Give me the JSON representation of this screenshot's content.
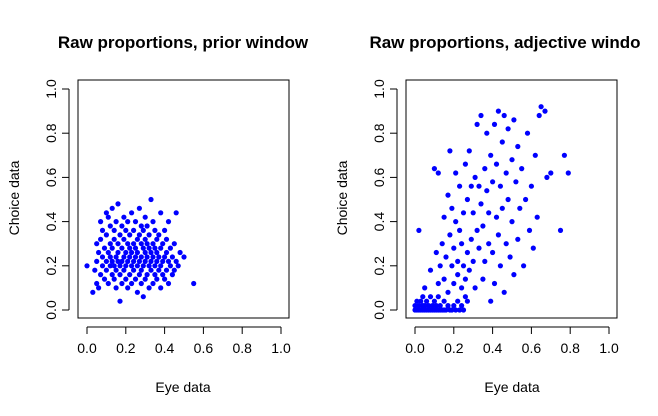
{
  "figure": {
    "panels": [
      {
        "title": "Raw proportions, prior window",
        "xlabel": "Eye data",
        "ylabel": "Choice data"
      },
      {
        "title": "Raw proportions, adjective windo",
        "xlabel": "Eye data",
        "ylabel": "Choice data"
      }
    ]
  },
  "chart_data": [
    {
      "type": "scatter",
      "title": "Raw proportions, prior window",
      "xlabel": "Eye data",
      "ylabel": "Choice data",
      "xlim": [
        0,
        1
      ],
      "ylim": [
        0,
        1
      ],
      "xticks": [
        "0.0",
        "0.2",
        "0.4",
        "0.6",
        "0.8",
        "1.0"
      ],
      "yticks": [
        "0.0",
        "0.2",
        "0.4",
        "0.6",
        "0.8",
        "1.0"
      ],
      "marker_color": "#0000ff",
      "points": [
        [
          0.0,
          0.2
        ],
        [
          0.03,
          0.08
        ],
        [
          0.04,
          0.18
        ],
        [
          0.05,
          0.12
        ],
        [
          0.05,
          0.22
        ],
        [
          0.05,
          0.3
        ],
        [
          0.06,
          0.1
        ],
        [
          0.06,
          0.26
        ],
        [
          0.07,
          0.16
        ],
        [
          0.07,
          0.32
        ],
        [
          0.07,
          0.4
        ],
        [
          0.08,
          0.2
        ],
        [
          0.08,
          0.24
        ],
        [
          0.08,
          0.36
        ],
        [
          0.09,
          0.14
        ],
        [
          0.09,
          0.28
        ],
        [
          0.1,
          0.18
        ],
        [
          0.1,
          0.22
        ],
        [
          0.1,
          0.34
        ],
        [
          0.1,
          0.44
        ],
        [
          0.11,
          0.12
        ],
        [
          0.11,
          0.26
        ],
        [
          0.11,
          0.42
        ],
        [
          0.12,
          0.2
        ],
        [
          0.12,
          0.24
        ],
        [
          0.12,
          0.3
        ],
        [
          0.12,
          0.38
        ],
        [
          0.13,
          0.16
        ],
        [
          0.13,
          0.22
        ],
        [
          0.13,
          0.28
        ],
        [
          0.13,
          0.46
        ],
        [
          0.14,
          0.14
        ],
        [
          0.14,
          0.2
        ],
        [
          0.14,
          0.32
        ],
        [
          0.14,
          0.36
        ],
        [
          0.15,
          0.1
        ],
        [
          0.15,
          0.18
        ],
        [
          0.15,
          0.24
        ],
        [
          0.15,
          0.4
        ],
        [
          0.16,
          0.22
        ],
        [
          0.16,
          0.26
        ],
        [
          0.16,
          0.3
        ],
        [
          0.16,
          0.48
        ],
        [
          0.17,
          0.16
        ],
        [
          0.17,
          0.2
        ],
        [
          0.17,
          0.34
        ],
        [
          0.17,
          0.04
        ],
        [
          0.18,
          0.12
        ],
        [
          0.18,
          0.22
        ],
        [
          0.18,
          0.28
        ],
        [
          0.18,
          0.38
        ],
        [
          0.19,
          0.18
        ],
        [
          0.19,
          0.24
        ],
        [
          0.19,
          0.32
        ],
        [
          0.19,
          0.42
        ],
        [
          0.2,
          0.14
        ],
        [
          0.2,
          0.2
        ],
        [
          0.2,
          0.26
        ],
        [
          0.2,
          0.36
        ],
        [
          0.21,
          0.1
        ],
        [
          0.21,
          0.22
        ],
        [
          0.21,
          0.3
        ],
        [
          0.21,
          0.4
        ],
        [
          0.22,
          0.16
        ],
        [
          0.22,
          0.24
        ],
        [
          0.22,
          0.28
        ],
        [
          0.22,
          0.34
        ],
        [
          0.23,
          0.12
        ],
        [
          0.23,
          0.2
        ],
        [
          0.23,
          0.26
        ],
        [
          0.23,
          0.44
        ],
        [
          0.24,
          0.18
        ],
        [
          0.24,
          0.22
        ],
        [
          0.24,
          0.3
        ],
        [
          0.24,
          0.36
        ],
        [
          0.25,
          0.14
        ],
        [
          0.25,
          0.24
        ],
        [
          0.25,
          0.28
        ],
        [
          0.25,
          0.4
        ],
        [
          0.26,
          0.08
        ],
        [
          0.26,
          0.2
        ],
        [
          0.26,
          0.26
        ],
        [
          0.26,
          0.32
        ],
        [
          0.27,
          0.16
        ],
        [
          0.27,
          0.22
        ],
        [
          0.27,
          0.34
        ],
        [
          0.27,
          0.46
        ],
        [
          0.28,
          0.12
        ],
        [
          0.28,
          0.18
        ],
        [
          0.28,
          0.24
        ],
        [
          0.28,
          0.3
        ],
        [
          0.28,
          0.38
        ],
        [
          0.29,
          0.06
        ],
        [
          0.29,
          0.2
        ],
        [
          0.29,
          0.28
        ],
        [
          0.29,
          0.36
        ],
        [
          0.3,
          0.14
        ],
        [
          0.3,
          0.22
        ],
        [
          0.3,
          0.26
        ],
        [
          0.3,
          0.32
        ],
        [
          0.3,
          0.42
        ],
        [
          0.31,
          0.16
        ],
        [
          0.31,
          0.24
        ],
        [
          0.31,
          0.3
        ],
        [
          0.31,
          0.38
        ],
        [
          0.32,
          0.1
        ],
        [
          0.32,
          0.2
        ],
        [
          0.32,
          0.28
        ],
        [
          0.32,
          0.34
        ],
        [
          0.33,
          0.18
        ],
        [
          0.33,
          0.22
        ],
        [
          0.33,
          0.26
        ],
        [
          0.33,
          0.5
        ],
        [
          0.34,
          0.12
        ],
        [
          0.34,
          0.24
        ],
        [
          0.34,
          0.3
        ],
        [
          0.34,
          0.4
        ],
        [
          0.35,
          0.16
        ],
        [
          0.35,
          0.2
        ],
        [
          0.35,
          0.28
        ],
        [
          0.35,
          0.36
        ],
        [
          0.36,
          0.14
        ],
        [
          0.36,
          0.22
        ],
        [
          0.36,
          0.26
        ],
        [
          0.36,
          0.32
        ],
        [
          0.37,
          0.18
        ],
        [
          0.37,
          0.24
        ],
        [
          0.37,
          0.34
        ],
        [
          0.38,
          0.1
        ],
        [
          0.38,
          0.2
        ],
        [
          0.38,
          0.28
        ],
        [
          0.38,
          0.44
        ],
        [
          0.39,
          0.16
        ],
        [
          0.39,
          0.22
        ],
        [
          0.39,
          0.3
        ],
        [
          0.4,
          0.14
        ],
        [
          0.4,
          0.24
        ],
        [
          0.4,
          0.36
        ],
        [
          0.41,
          0.18
        ],
        [
          0.41,
          0.26
        ],
        [
          0.41,
          0.32
        ],
        [
          0.42,
          0.12
        ],
        [
          0.42,
          0.22
        ],
        [
          0.42,
          0.4
        ],
        [
          0.43,
          0.2
        ],
        [
          0.43,
          0.28
        ],
        [
          0.44,
          0.16
        ],
        [
          0.44,
          0.24
        ],
        [
          0.45,
          0.18
        ],
        [
          0.45,
          0.3
        ],
        [
          0.46,
          0.22
        ],
        [
          0.46,
          0.44
        ],
        [
          0.47,
          0.2
        ],
        [
          0.48,
          0.26
        ],
        [
          0.5,
          0.24
        ],
        [
          0.55,
          0.12
        ]
      ]
    },
    {
      "type": "scatter",
      "title": "Raw proportions, adjective windo",
      "xlabel": "Eye data",
      "ylabel": "Choice data",
      "xlim": [
        0,
        1
      ],
      "ylim": [
        0,
        1
      ],
      "xticks": [
        "0.0",
        "0.2",
        "0.4",
        "0.6",
        "0.8",
        "1.0"
      ],
      "yticks": [
        "0.0",
        "0.2",
        "0.4",
        "0.6",
        "0.8",
        "1.0"
      ],
      "marker_color": "#0000ff",
      "points": [
        [
          0.0,
          0.0
        ],
        [
          0.0,
          0.02
        ],
        [
          0.01,
          0.0
        ],
        [
          0.01,
          0.04
        ],
        [
          0.02,
          0.0
        ],
        [
          0.02,
          0.02
        ],
        [
          0.03,
          0.0
        ],
        [
          0.03,
          0.04
        ],
        [
          0.04,
          0.0
        ],
        [
          0.04,
          0.02
        ],
        [
          0.04,
          0.06
        ],
        [
          0.05,
          0.0
        ],
        [
          0.05,
          0.02
        ],
        [
          0.06,
          0.0
        ],
        [
          0.06,
          0.04
        ],
        [
          0.07,
          0.0
        ],
        [
          0.07,
          0.02
        ],
        [
          0.08,
          0.0
        ],
        [
          0.08,
          0.06
        ],
        [
          0.09,
          0.0
        ],
        [
          0.09,
          0.02
        ],
        [
          0.1,
          0.0
        ],
        [
          0.1,
          0.04
        ],
        [
          0.11,
          0.0
        ],
        [
          0.11,
          0.02
        ],
        [
          0.12,
          0.0
        ],
        [
          0.12,
          0.06
        ],
        [
          0.13,
          0.0
        ],
        [
          0.13,
          0.02
        ],
        [
          0.14,
          0.0
        ],
        [
          0.15,
          0.0
        ],
        [
          0.15,
          0.04
        ],
        [
          0.16,
          0.0
        ],
        [
          0.17,
          0.02
        ],
        [
          0.18,
          0.0
        ],
        [
          0.19,
          0.0
        ],
        [
          0.2,
          0.02
        ],
        [
          0.21,
          0.0
        ],
        [
          0.22,
          0.04
        ],
        [
          0.23,
          0.0
        ],
        [
          0.24,
          0.02
        ],
        [
          0.25,
          0.0
        ],
        [
          0.26,
          0.06
        ],
        [
          0.27,
          0.04
        ],
        [
          0.02,
          0.36
        ],
        [
          0.05,
          0.1
        ],
        [
          0.08,
          0.18
        ],
        [
          0.1,
          0.64
        ],
        [
          0.11,
          0.26
        ],
        [
          0.12,
          0.12
        ],
        [
          0.12,
          0.62
        ],
        [
          0.13,
          0.2
        ],
        [
          0.14,
          0.3
        ],
        [
          0.15,
          0.42
        ],
        [
          0.15,
          0.14
        ],
        [
          0.16,
          0.24
        ],
        [
          0.17,
          0.52
        ],
        [
          0.17,
          0.08
        ],
        [
          0.18,
          0.34
        ],
        [
          0.18,
          0.72
        ],
        [
          0.19,
          0.2
        ],
        [
          0.19,
          0.46
        ],
        [
          0.2,
          0.12
        ],
        [
          0.2,
          0.28
        ],
        [
          0.21,
          0.4
        ],
        [
          0.21,
          0.62
        ],
        [
          0.22,
          0.16
        ],
        [
          0.22,
          0.22
        ],
        [
          0.23,
          0.36
        ],
        [
          0.23,
          0.56
        ],
        [
          0.24,
          0.1
        ],
        [
          0.24,
          0.3
        ],
        [
          0.25,
          0.44
        ],
        [
          0.25,
          0.2
        ],
        [
          0.26,
          0.66
        ],
        [
          0.26,
          0.14
        ],
        [
          0.27,
          0.26
        ],
        [
          0.27,
          0.5
        ],
        [
          0.28,
          0.72
        ],
        [
          0.28,
          0.18
        ],
        [
          0.29,
          0.32
        ],
        [
          0.29,
          0.56
        ],
        [
          0.3,
          0.22
        ],
        [
          0.3,
          0.44
        ],
        [
          0.31,
          0.6
        ],
        [
          0.31,
          0.1
        ],
        [
          0.32,
          0.36
        ],
        [
          0.32,
          0.84
        ],
        [
          0.33,
          0.28
        ],
        [
          0.33,
          0.56
        ],
        [
          0.34,
          0.48
        ],
        [
          0.34,
          0.88
        ],
        [
          0.35,
          0.14
        ],
        [
          0.35,
          0.38
        ],
        [
          0.36,
          0.64
        ],
        [
          0.36,
          0.22
        ],
        [
          0.37,
          0.54
        ],
        [
          0.37,
          0.8
        ],
        [
          0.38,
          0.3
        ],
        [
          0.38,
          0.44
        ],
        [
          0.39,
          0.7
        ],
        [
          0.39,
          0.04
        ],
        [
          0.4,
          0.26
        ],
        [
          0.4,
          0.58
        ],
        [
          0.41,
          0.84
        ],
        [
          0.41,
          0.12
        ],
        [
          0.42,
          0.42
        ],
        [
          0.42,
          0.66
        ],
        [
          0.43,
          0.9
        ],
        [
          0.43,
          0.34
        ],
        [
          0.44,
          0.56
        ],
        [
          0.44,
          0.2
        ],
        [
          0.45,
          0.76
        ],
        [
          0.45,
          0.46
        ],
        [
          0.46,
          0.88
        ],
        [
          0.46,
          0.08
        ],
        [
          0.47,
          0.62
        ],
        [
          0.47,
          0.3
        ],
        [
          0.48,
          0.82
        ],
        [
          0.48,
          0.5
        ],
        [
          0.49,
          0.24
        ],
        [
          0.5,
          0.68
        ],
        [
          0.5,
          0.4
        ],
        [
          0.51,
          0.86
        ],
        [
          0.51,
          0.16
        ],
        [
          0.52,
          0.58
        ],
        [
          0.53,
          0.32
        ],
        [
          0.53,
          0.74
        ],
        [
          0.54,
          0.46
        ],
        [
          0.55,
          0.64
        ],
        [
          0.56,
          0.2
        ],
        [
          0.57,
          0.5
        ],
        [
          0.58,
          0.8
        ],
        [
          0.59,
          0.36
        ],
        [
          0.6,
          0.56
        ],
        [
          0.61,
          0.28
        ],
        [
          0.62,
          0.7
        ],
        [
          0.63,
          0.42
        ],
        [
          0.64,
          0.88
        ],
        [
          0.65,
          0.92
        ],
        [
          0.67,
          0.9
        ],
        [
          0.68,
          0.6
        ],
        [
          0.7,
          0.62
        ],
        [
          0.75,
          0.36
        ],
        [
          0.77,
          0.7
        ],
        [
          0.79,
          0.62
        ]
      ]
    }
  ]
}
